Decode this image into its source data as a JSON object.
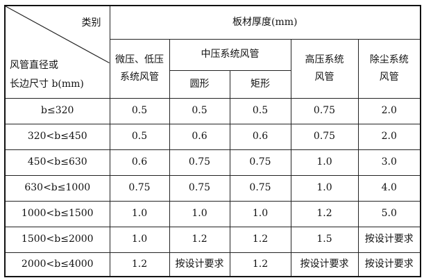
{
  "header": {
    "corner_top": "类别",
    "corner_bottom_line1": "风管直径或",
    "corner_bottom_line2": "长边尺寸 b(mm)",
    "group_title": "板材厚度(mm)",
    "col_low_line1": "微压、低压",
    "col_low_line2": "系统风管",
    "col_mid": "中压系统风管",
    "col_mid_round": "圆形",
    "col_mid_rect": "矩形",
    "col_high_line1": "高压系统",
    "col_high_line2": "风管",
    "col_dust_line1": "除尘系统",
    "col_dust_line2": "风管"
  },
  "rows": [
    {
      "size": "b≤320",
      "low": "0.5",
      "round": "0.5",
      "rect": "0.5",
      "high": "0.75",
      "dust": "2.0"
    },
    {
      "size": "320<b≤450",
      "low": "0.5",
      "round": "0.6",
      "rect": "0.6",
      "high": "0.75",
      "dust": "2.0"
    },
    {
      "size": "450<b≤630",
      "low": "0.6",
      "round": "0.75",
      "rect": "0.75",
      "high": "1.0",
      "dust": "3.0"
    },
    {
      "size": "630<b≤1000",
      "low": "0.75",
      "round": "0.75",
      "rect": "0.75",
      "high": "1.0",
      "dust": "4.0"
    },
    {
      "size": "1000<b≤1500",
      "low": "1.0",
      "round": "1.0",
      "rect": "1.0",
      "high": "1.2",
      "dust": "5.0"
    },
    {
      "size": "1500<b≤2000",
      "low": "1.0",
      "round": "1.2",
      "rect": "1.2",
      "high": "1.5",
      "dust": "按设计要求"
    },
    {
      "size": "2000<b≤4000",
      "low": "1.2",
      "round": "按设计要求",
      "rect": "1.2",
      "high": "按设计要求",
      "dust": "按设计要求"
    }
  ]
}
